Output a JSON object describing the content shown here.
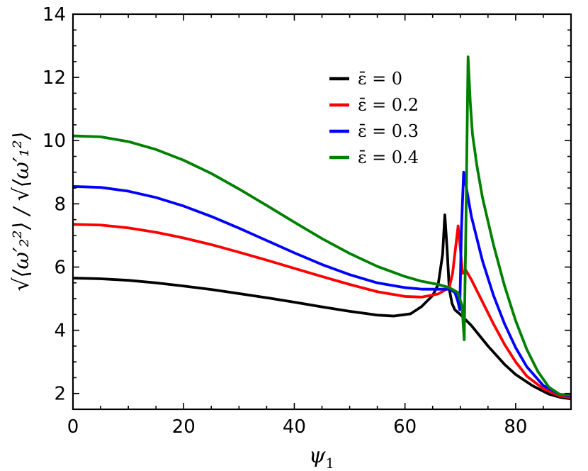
{
  "chart_data": {
    "type": "line",
    "title": "",
    "xlabel": "ψ",
    "xlabel_sub": "1",
    "ylabel": "√⟨ω′₂²⟩ / √⟨ω′₁²⟩",
    "xlim": [
      0,
      90
    ],
    "ylim": [
      1.5,
      14
    ],
    "xticks": [
      0,
      20,
      40,
      60,
      80
    ],
    "yticks": [
      2,
      4,
      6,
      8,
      10,
      12,
      14
    ],
    "xtick_labels": [
      "0",
      "20",
      "40",
      "60",
      "80"
    ],
    "ytick_labels": [
      "2",
      "4",
      "6",
      "8",
      "10",
      "12",
      "14"
    ],
    "grid": false,
    "legend_position": "top-right",
    "series": [
      {
        "name": "ε̄ = 0",
        "color": "#000000",
        "x": [
          0,
          5,
          10,
          15,
          20,
          25,
          30,
          35,
          40,
          45,
          50,
          55,
          58,
          61,
          63,
          65,
          66,
          66.8,
          67.2,
          67.6,
          68.0,
          68.5,
          69,
          70,
          72,
          75,
          78,
          80,
          83,
          86,
          88,
          90
        ],
        "y": [
          5.65,
          5.63,
          5.58,
          5.5,
          5.4,
          5.29,
          5.16,
          5.03,
          4.89,
          4.74,
          4.6,
          4.48,
          4.45,
          4.52,
          4.75,
          5.1,
          5.45,
          6.4,
          7.65,
          6.6,
          5.3,
          4.85,
          4.65,
          4.5,
          4.15,
          3.5,
          2.92,
          2.6,
          2.25,
          1.98,
          1.88,
          1.83
        ]
      },
      {
        "name": "ε̄ = 0.2",
        "color": "#ff0000",
        "x": [
          0,
          5,
          10,
          15,
          20,
          25,
          30,
          35,
          40,
          45,
          50,
          55,
          60,
          63,
          66,
          68,
          68.6,
          69.2,
          69.6,
          70.0,
          70.4,
          71,
          72,
          74,
          76,
          78,
          80,
          82,
          85,
          88,
          90
        ],
        "y": [
          7.35,
          7.33,
          7.24,
          7.1,
          6.92,
          6.71,
          6.47,
          6.22,
          5.96,
          5.7,
          5.45,
          5.22,
          5.07,
          5.05,
          5.15,
          5.35,
          5.8,
          6.7,
          7.3,
          6.6,
          5.8,
          5.9,
          5.6,
          4.9,
          4.2,
          3.55,
          3.0,
          2.55,
          2.15,
          1.92,
          1.87
        ]
      },
      {
        "name": "ε̄ = 0.3",
        "color": "#0000ff",
        "x": [
          0,
          5,
          10,
          15,
          20,
          25,
          30,
          35,
          40,
          45,
          50,
          55,
          60,
          63,
          66,
          68,
          69,
          69.5,
          69.9,
          70.2,
          70.6,
          71,
          72,
          74,
          76,
          78,
          80,
          82,
          85,
          88,
          90
        ],
        "y": [
          8.55,
          8.52,
          8.4,
          8.2,
          7.93,
          7.6,
          7.23,
          6.84,
          6.45,
          6.08,
          5.76,
          5.5,
          5.35,
          5.3,
          5.3,
          5.3,
          5.2,
          4.95,
          4.65,
          7.2,
          9.0,
          8.6,
          7.6,
          6.2,
          5.1,
          4.2,
          3.45,
          2.85,
          2.25,
          1.97,
          1.92
        ]
      },
      {
        "name": "ε̄ = 0.4",
        "color": "#008000",
        "x": [
          0,
          5,
          10,
          15,
          20,
          25,
          30,
          35,
          40,
          45,
          50,
          55,
          60,
          63,
          66,
          68,
          69.5,
          70.3,
          70.7,
          71.0,
          71.4,
          71.8,
          72.2,
          73,
          74,
          76,
          78,
          80,
          82,
          84,
          86,
          88,
          90
        ],
        "y": [
          10.15,
          10.12,
          9.97,
          9.72,
          9.38,
          8.96,
          8.47,
          7.95,
          7.42,
          6.9,
          6.43,
          6.02,
          5.7,
          5.55,
          5.45,
          5.35,
          5.2,
          4.8,
          3.7,
          7.2,
          12.65,
          11.2,
          10.2,
          9.2,
          8.2,
          6.7,
          5.4,
          4.3,
          3.4,
          2.7,
          2.2,
          1.97,
          1.95
        ]
      }
    ]
  }
}
